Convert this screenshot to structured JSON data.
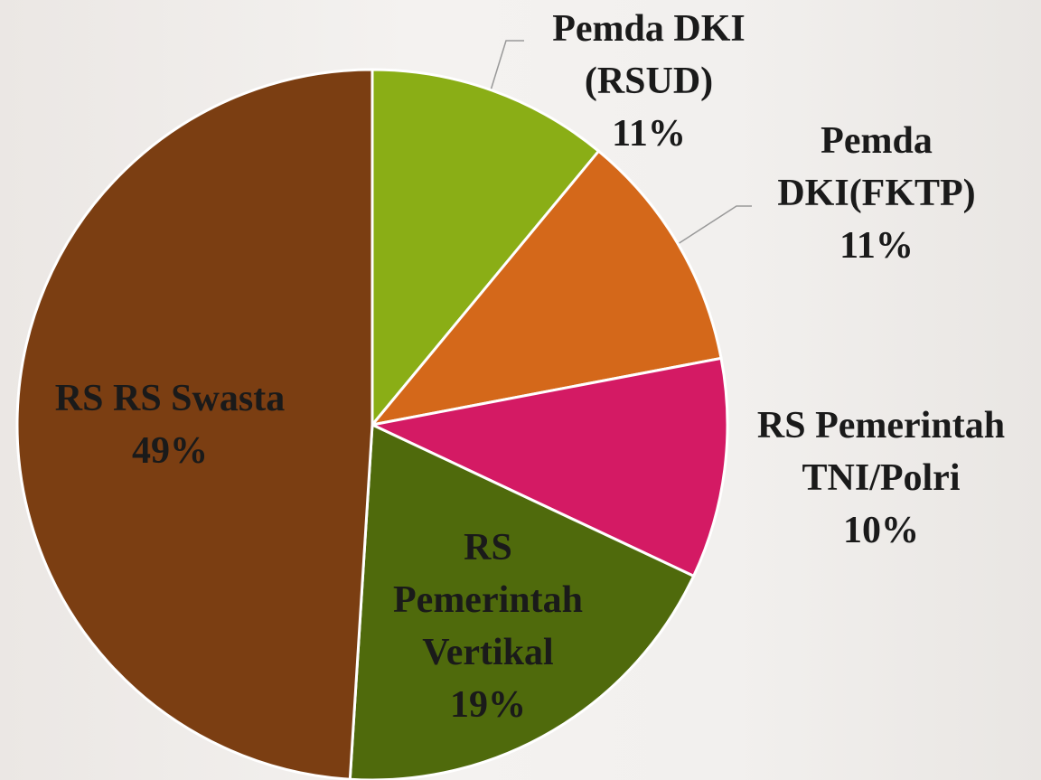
{
  "chart_data": {
    "type": "pie",
    "categories": [
      "Pemda DKI (RSUD)",
      "Pemda DKI(FKTP)",
      "RS Pemerintah TNI/Polri",
      "RS Pemerintah Vertikal",
      "RS RS Swasta"
    ],
    "values": [
      11,
      11,
      10,
      19,
      49
    ],
    "value_labels": [
      "11%",
      "11%",
      "10%",
      "19%",
      "49%"
    ],
    "colors": [
      "#8aae16",
      "#d4681a",
      "#d41a64",
      "#4f6a0c",
      "#7b3e12"
    ]
  }
}
